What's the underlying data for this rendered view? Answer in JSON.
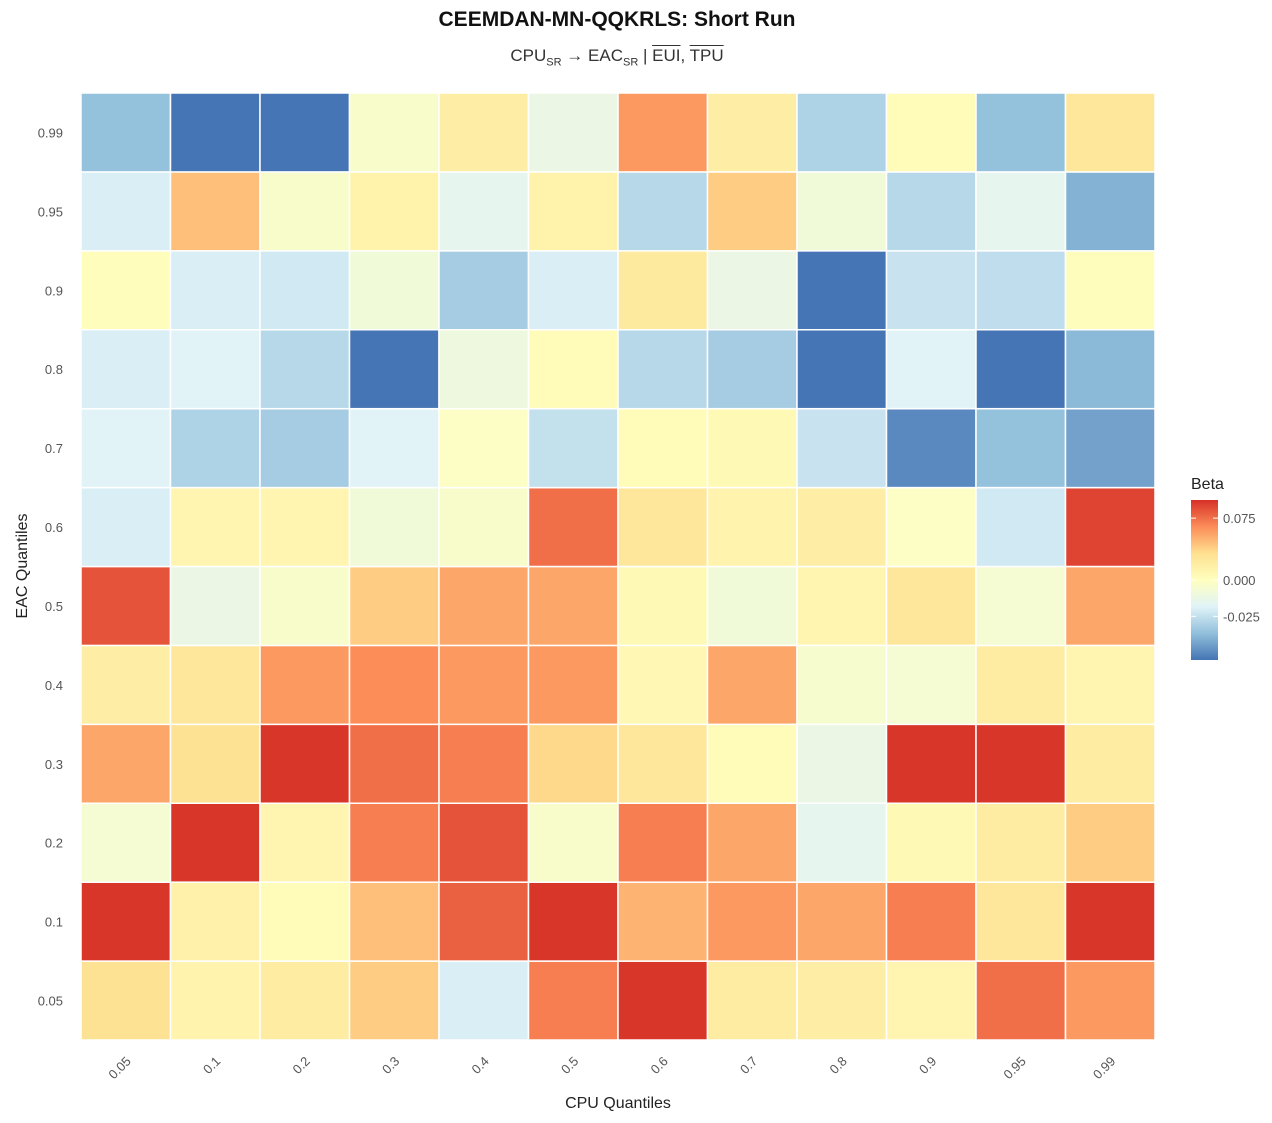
{
  "chart_data": {
    "type": "heatmap",
    "title": "CEEMDAN-MN-QQKRLS: Short Run",
    "subtitle": {
      "x_var": "CPU",
      "x_sub": "SR",
      "arrow": "→",
      "y_var": "EAC",
      "y_sub": "SR",
      "separator": "|",
      "controls": [
        "EUI",
        "TPU"
      ],
      "control_sep": ", "
    },
    "xlabel": "CPU Quantiles",
    "ylabel": "EAC Quantiles",
    "x_categories": [
      "0.05",
      "0.1",
      "0.2",
      "0.3",
      "0.4",
      "0.5",
      "0.6",
      "0.7",
      "0.8",
      "0.9",
      "0.95",
      "0.99"
    ],
    "y_categories": [
      "0.05",
      "0.1",
      "0.2",
      "0.3",
      "0.4",
      "0.5",
      "0.6",
      "0.7",
      "0.8",
      "0.9",
      "0.95",
      "0.99"
    ],
    "values": [
      [
        0.03,
        0.012,
        0.02,
        0.04,
        -0.02,
        0.07,
        0.095,
        0.02,
        0.018,
        0.01,
        0.075,
        0.06
      ],
      [
        0.095,
        0.015,
        0.004,
        0.045,
        0.08,
        0.095,
        0.05,
        0.06,
        0.055,
        0.07,
        0.025,
        0.095
      ],
      [
        -0.006,
        0.095,
        0.01,
        0.07,
        0.085,
        -0.004,
        0.07,
        0.055,
        -0.015,
        0.006,
        0.02,
        0.04
      ],
      [
        0.055,
        0.03,
        0.095,
        0.075,
        0.07,
        0.035,
        0.025,
        0.004,
        -0.012,
        0.095,
        0.095,
        0.02
      ],
      [
        0.018,
        0.025,
        0.06,
        0.065,
        0.06,
        0.06,
        0.008,
        0.055,
        -0.005,
        -0.006,
        0.02,
        0.01
      ],
      [
        0.085,
        -0.012,
        -0.004,
        0.04,
        0.055,
        0.055,
        0.006,
        -0.008,
        0.01,
        0.025,
        -0.006,
        0.055
      ],
      [
        -0.02,
        0.01,
        0.01,
        -0.008,
        -0.004,
        0.075,
        0.025,
        0.012,
        0.018,
        -0.002,
        -0.022,
        0.09
      ],
      [
        -0.018,
        -0.03,
        -0.032,
        -0.018,
        -0.002,
        -0.025,
        0.004,
        0.006,
        -0.024,
        -0.05,
        -0.036,
        -0.044
      ],
      [
        -0.02,
        -0.018,
        -0.028,
        -0.055,
        -0.01,
        0.004,
        -0.028,
        -0.032,
        -0.055,
        -0.018,
        -0.055,
        -0.038
      ],
      [
        0.002,
        -0.02,
        -0.022,
        -0.008,
        -0.032,
        -0.02,
        0.022,
        -0.012,
        -0.055,
        -0.024,
        -0.026,
        0.002
      ],
      [
        -0.02,
        0.045,
        -0.004,
        0.014,
        -0.015,
        0.014,
        -0.028,
        0.04,
        -0.008,
        -0.028,
        -0.015,
        -0.04
      ],
      [
        -0.036,
        -0.055,
        -0.055,
        -0.004,
        0.018,
        -0.012,
        0.06,
        0.018,
        -0.03,
        0.004,
        -0.036,
        0.025
      ]
    ],
    "legend": {
      "title": "Beta",
      "position": "right",
      "ticks": [
        {
          "value": 0.075,
          "label": "0.075"
        },
        {
          "value": 0.0,
          "label": "0.000"
        },
        {
          "value": -0.025,
          "label": "-0.025"
        }
      ],
      "range": [
        -0.055,
        0.097
      ]
    },
    "colors": {
      "low": "#4575b4",
      "mid": "#ffffbf",
      "high": "#d73027",
      "scale": [
        "#4575b4",
        "#91bfdb",
        "#e0f3f8",
        "#ffffbf",
        "#fee090",
        "#fc8d59",
        "#d73027"
      ],
      "tile_border": "#ffffff"
    },
    "grid": false
  }
}
